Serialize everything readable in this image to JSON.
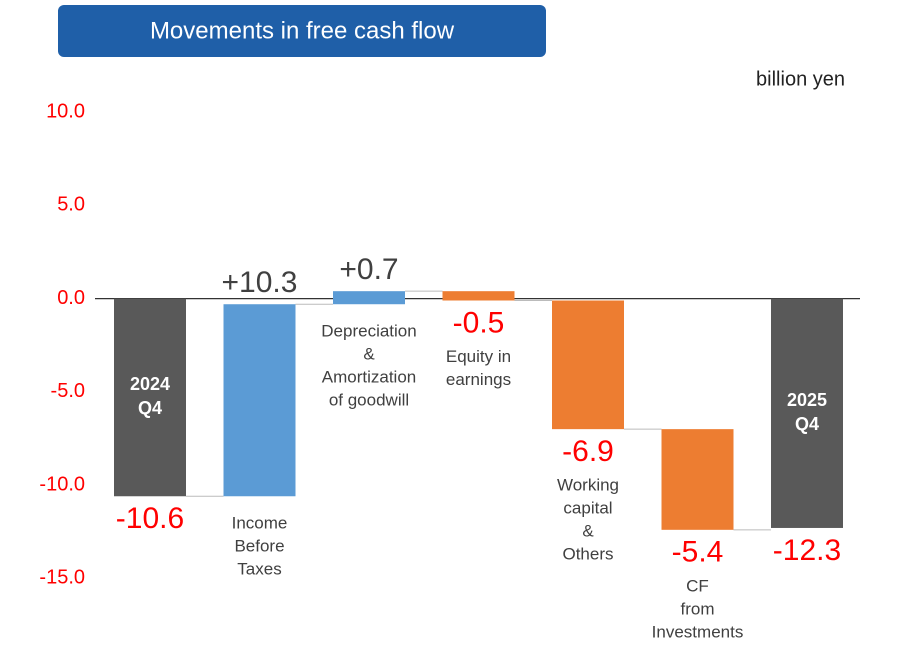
{
  "chart_data": {
    "type": "waterfall",
    "title": "Movements in free cash flow",
    "unit": "billion yen",
    "categories": [
      [
        "2024",
        "Q4"
      ],
      [
        "Income",
        "Before",
        "Taxes"
      ],
      [
        "Depreciation",
        "&",
        "Amortization",
        "of goodwill"
      ],
      [
        "Equity in",
        "earnings"
      ],
      [
        "Working",
        "capital",
        "&",
        "Others"
      ],
      [
        "CF",
        "from",
        "Investments"
      ],
      [
        "2025",
        "Q4"
      ]
    ],
    "measures": [
      "absolute",
      "relative",
      "relative",
      "relative",
      "relative",
      "relative",
      "total"
    ],
    "values": [
      -10.6,
      10.3,
      0.7,
      -0.5,
      -6.9,
      -5.4,
      -12.3
    ],
    "value_labels": [
      "-10.6",
      "+10.3",
      "+0.7",
      "-0.5",
      "-6.9",
      "-5.4",
      "-12.3"
    ],
    "colors": {
      "total": "#595959",
      "increase": "#5b9bd5",
      "decrease": "#ed7d31"
    },
    "ylim": [
      -18.9,
      12.8
    ],
    "yticks": [
      {
        "value": -15,
        "label": "-15.0"
      },
      {
        "value": -10,
        "label": "-10.0"
      },
      {
        "value": -5,
        "label": "-5.0"
      },
      {
        "value": 0,
        "label": "0.0"
      },
      {
        "value": 5,
        "label": "5.0"
      },
      {
        "value": 10,
        "label": "10.0"
      }
    ]
  }
}
